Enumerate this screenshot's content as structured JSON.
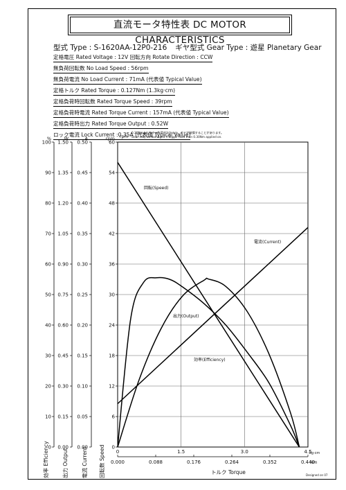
{
  "title": "直流モータ特性表 DC MOTOR CHARACTERISTICS",
  "type_line": {
    "model": "型式 Type : S-1620AA-12P0-216",
    "gear": "ギヤ型式 Gear Type : 遊星  Planetary Gear"
  },
  "specs": [
    "定格電圧 Rated Voltage : 12V  回転方向 Rotate Direction : CCW",
    "無負荷回転数 No Load Speed : 56rpm",
    "無負荷電流 No Load Current : 71mA (代表値 Typical Value)",
    "定格トルク Rated Torque : 0.127Nm (1.3kg·cm)",
    "定格負荷時回転数 Rated Torque Speed : 39rpm",
    "定格負荷時電流 Rated Torque Current : 157mA (代表値 Typical Value)",
    "定格負荷時出力 Rated Torque Output : 0.52W",
    "ロック電流 Lock Current :0.35A (代表値 Typical Value)"
  ],
  "warning": {
    "jp": "0.30Nmより大きい負荷がかかると、ギヤが破損することがあります。",
    "en": "Gear may be damaged if bigger load than 0.30Nm applied on."
  },
  "designed": "Designed on 07",
  "chart_data": {
    "type": "line",
    "axes": {
      "efficiency": {
        "unit": "%",
        "range": [
          0,
          100
        ],
        "ticks": [
          "0",
          "10",
          "20",
          "30",
          "40",
          "50",
          "60",
          "70",
          "80",
          "90",
          "100"
        ],
        "label": "効率 Efficiency"
      },
      "output": {
        "unit": "W",
        "range": [
          0,
          1.5
        ],
        "ticks": [
          "0.00",
          "0.15",
          "0.30",
          "0.45",
          "0.60",
          "0.75",
          "0.90",
          "1.05",
          "1.20",
          "1.35",
          "1.50"
        ],
        "label": "出力 Output"
      },
      "current": {
        "unit": "A",
        "range": [
          0,
          0.5
        ],
        "ticks": [
          "0.00",
          "0.05",
          "0.10",
          "0.15",
          "0.20",
          "0.25",
          "0.30",
          "0.35",
          "0.40",
          "0.45",
          "0.50"
        ],
        "label": "電流 Current"
      },
      "speed": {
        "unit": "rpm",
        "range": [
          0,
          60
        ],
        "ticks": [
          "0",
          "6",
          "12",
          "18",
          "24",
          "30",
          "36",
          "42",
          "48",
          "54",
          "60"
        ],
        "label": "回転数 Speed"
      },
      "torque_kgcm": {
        "unit": "kg·cm",
        "range": [
          0,
          4.5
        ],
        "ticks": [
          "0",
          "1.5",
          "3.0",
          "4.5"
        ]
      },
      "torque_nm": {
        "unit": "Nm",
        "range": [
          0,
          0.44
        ],
        "ticks": [
          "0.000",
          "0.088",
          "0.176",
          "0.264",
          "0.352",
          "0.440"
        ],
        "label": "トルク Torque"
      }
    },
    "series": [
      {
        "name": "回転(Speed)",
        "axis": "speed",
        "x": [
          0,
          0.42
        ],
        "y": [
          56,
          0
        ]
      },
      {
        "name": "電流(Current)",
        "axis": "current",
        "x": [
          0,
          0.44
        ],
        "y": [
          0.071,
          0.36
        ]
      },
      {
        "name": "出力(Output)",
        "axis": "output",
        "x": [
          0,
          0.05,
          0.1,
          0.15,
          0.2,
          0.21,
          0.25,
          0.3,
          0.35,
          0.4,
          0.42
        ],
        "y": [
          0,
          0.333,
          0.581,
          0.743,
          0.821,
          0.826,
          0.79,
          0.665,
          0.457,
          0.166,
          0
        ]
      },
      {
        "name": "効率(Efficiency)",
        "axis": "efficiency",
        "x": [
          0,
          0.03,
          0.06,
          0.09,
          0.12,
          0.15,
          0.2,
          0.25,
          0.3,
          0.35,
          0.4,
          0.42
        ],
        "y": [
          0,
          42,
          54,
          55.5,
          55,
          52.5,
          47,
          40,
          31,
          21,
          7,
          0
        ]
      }
    ]
  }
}
